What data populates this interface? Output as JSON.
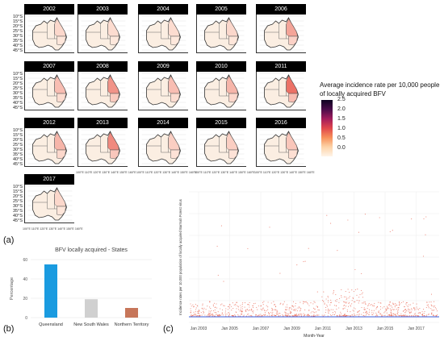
{
  "maps": {
    "years": [
      "2002",
      "2003",
      "2004",
      "2005",
      "2006",
      "2007",
      "2008",
      "2009",
      "2010",
      "2011",
      "2012",
      "2013",
      "2014",
      "2015",
      "2016",
      "2017"
    ],
    "lat_labels": [
      "10°S",
      "15°S",
      "20°S",
      "25°S",
      "30°S",
      "35°S",
      "40°S",
      "45°S"
    ],
    "lon_labels": "100°E 110°E 120°E 130°E 140°E 150°E 160°E",
    "legend": {
      "title": "Average incidence rate per 10,000 people of locally acquired BFV",
      "ticks": [
        "2.5",
        "2.0",
        "1.5",
        "1.0",
        "0.5",
        "0.0"
      ]
    },
    "intensity": [
      0.15,
      0.12,
      0.12,
      0.15,
      0.45,
      0.3,
      0.55,
      0.3,
      0.35,
      0.75,
      0.35,
      0.6,
      0.2,
      0.2,
      0.25,
      0.15
    ]
  },
  "labels": {
    "a": "(a)",
    "b": "(b)",
    "c": "(c)"
  },
  "chart_data": [
    {
      "type": "bar",
      "title": "BFV locally acquired - States",
      "ylabel": "Percentage",
      "categories": [
        "Queensland",
        "New South Wales",
        "Northern Territory"
      ],
      "values": [
        55,
        19,
        10
      ],
      "yticks": [
        "0",
        "20",
        "40",
        "60"
      ],
      "ylim": [
        0,
        60
      ],
      "colors": [
        "#1a9be0",
        "#d0d0d0",
        "#c7765a"
      ]
    },
    {
      "type": "scatter",
      "xlabel": "Month-Year",
      "ylabel": "Incidence rates per 10,000 population of locally acquired Barmah Forest virus",
      "x_ticks": [
        "Jan 2003",
        "Jan 2005",
        "Jan 2007",
        "Jan 2009",
        "Jan 2011",
        "Jan 2013",
        "Jan 2015",
        "Jan 2017"
      ],
      "grid": true,
      "point_color": "#e8604c",
      "line_color": "#3a5bd9"
    }
  ]
}
